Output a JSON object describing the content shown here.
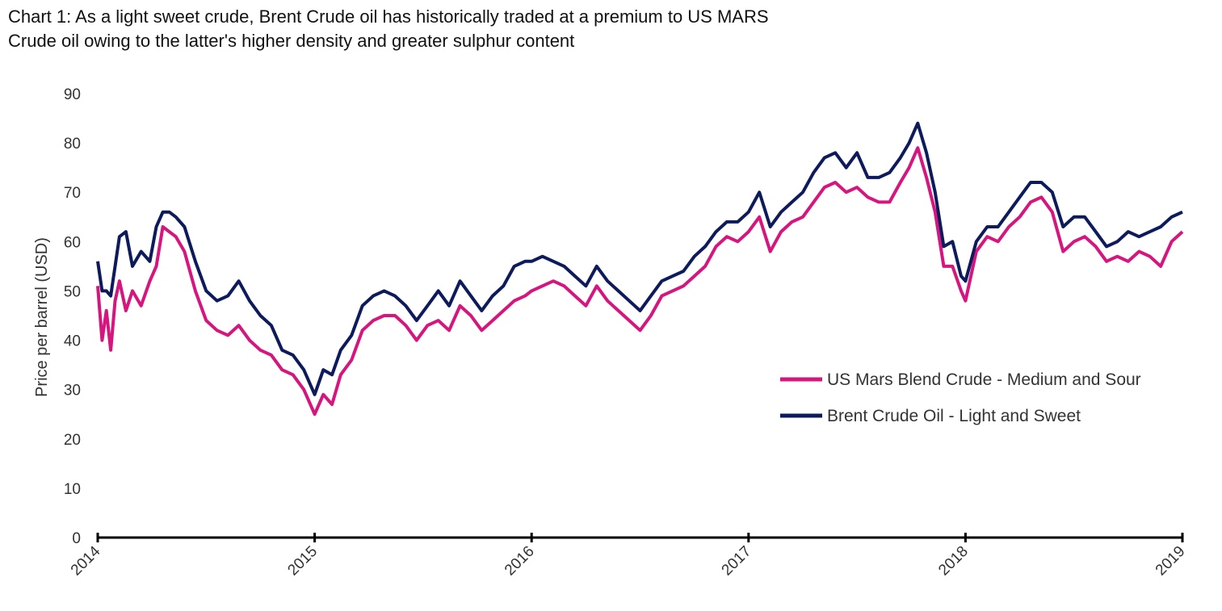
{
  "chart_data": {
    "type": "line",
    "title_line1": "Chart 1: As a light sweet crude, Brent Crude oil has historically traded at a premium to US MARS",
    "title_line2": "Crude oil owing to the latter's higher density and greater sulphur content",
    "ylabel": "Price per barrel (USD)",
    "xlabel": "",
    "ylim": [
      0,
      90
    ],
    "yticks": [
      0,
      10,
      20,
      30,
      40,
      50,
      60,
      70,
      80,
      90
    ],
    "xlim": [
      2014,
      2019
    ],
    "xticks": [
      "2014",
      "2015",
      "2016",
      "2017",
      "2018",
      "2019"
    ],
    "grid": false,
    "legend_position": "lower-right",
    "x": [
      2014.0,
      2014.02,
      2014.04,
      2014.06,
      2014.08,
      2014.1,
      2014.13,
      2014.16,
      2014.2,
      2014.24,
      2014.27,
      2014.3,
      2014.33,
      2014.36,
      2014.4,
      2014.45,
      2014.5,
      2014.55,
      2014.6,
      2014.65,
      2014.7,
      2014.75,
      2014.8,
      2014.85,
      2014.9,
      2014.95,
      2015.0,
      2015.04,
      2015.08,
      2015.12,
      2015.17,
      2015.22,
      2015.27,
      2015.32,
      2015.37,
      2015.42,
      2015.47,
      2015.52,
      2015.57,
      2015.62,
      2015.67,
      2015.72,
      2015.77,
      2015.82,
      2015.87,
      2015.92,
      2015.97,
      2016.0,
      2016.05,
      2016.1,
      2016.15,
      2016.2,
      2016.25,
      2016.3,
      2016.35,
      2016.4,
      2016.45,
      2016.5,
      2016.55,
      2016.6,
      2016.65,
      2016.7,
      2016.75,
      2016.8,
      2016.85,
      2016.9,
      2016.95,
      2017.0,
      2017.05,
      2017.1,
      2017.15,
      2017.2,
      2017.25,
      2017.3,
      2017.35,
      2017.4,
      2017.45,
      2017.5,
      2017.55,
      2017.6,
      2017.65,
      2017.7,
      2017.74,
      2017.78,
      2017.82,
      2017.86,
      2017.9,
      2017.94,
      2017.98,
      2018.0,
      2018.05,
      2018.1,
      2018.15,
      2018.2,
      2018.25,
      2018.3,
      2018.35,
      2018.4,
      2018.45,
      2018.5,
      2018.55,
      2018.6,
      2018.65,
      2018.7,
      2018.75,
      2018.8,
      2018.85,
      2018.9,
      2018.95,
      2019.0
    ],
    "series": [
      {
        "name": "US Mars Blend Crude - Medium and Sour",
        "color": "#d6157f",
        "values": [
          51,
          40,
          46,
          38,
          48,
          52,
          46,
          50,
          47,
          52,
          55,
          63,
          62,
          61,
          58,
          50,
          44,
          42,
          41,
          43,
          40,
          38,
          37,
          34,
          33,
          30,
          25,
          29,
          27,
          33,
          36,
          42,
          44,
          45,
          45,
          43,
          40,
          43,
          44,
          42,
          47,
          45,
          42,
          44,
          46,
          48,
          49,
          50,
          51,
          52,
          51,
          49,
          47,
          51,
          48,
          46,
          44,
          42,
          45,
          49,
          50,
          51,
          53,
          55,
          59,
          61,
          60,
          62,
          65,
          58,
          62,
          64,
          65,
          68,
          71,
          72,
          70,
          71,
          69,
          68,
          68,
          72,
          75,
          79,
          73,
          66,
          55,
          55,
          50,
          48,
          58,
          61,
          60,
          63,
          65,
          68,
          69,
          66,
          58,
          60,
          61,
          59,
          56,
          57,
          56,
          58,
          57,
          55,
          60,
          62
        ]
      },
      {
        "name": "Brent Crude Oil - Light and Sweet",
        "color": "#0d1b5c",
        "values": [
          56,
          50,
          50,
          49,
          55,
          61,
          62,
          55,
          58,
          56,
          63,
          66,
          66,
          65,
          63,
          56,
          50,
          48,
          49,
          52,
          48,
          45,
          43,
          38,
          37,
          34,
          29,
          34,
          33,
          38,
          41,
          47,
          49,
          50,
          49,
          47,
          44,
          47,
          50,
          47,
          52,
          49,
          46,
          49,
          51,
          55,
          56,
          56,
          57,
          56,
          55,
          53,
          51,
          55,
          52,
          50,
          48,
          46,
          49,
          52,
          53,
          54,
          57,
          59,
          62,
          64,
          64,
          66,
          70,
          63,
          66,
          68,
          70,
          74,
          77,
          78,
          75,
          78,
          73,
          73,
          74,
          77,
          80,
          84,
          78,
          70,
          59,
          60,
          53,
          52,
          60,
          63,
          63,
          66,
          69,
          72,
          72,
          70,
          63,
          65,
          65,
          62,
          59,
          60,
          62,
          61,
          62,
          63,
          65,
          66
        ]
      }
    ]
  }
}
